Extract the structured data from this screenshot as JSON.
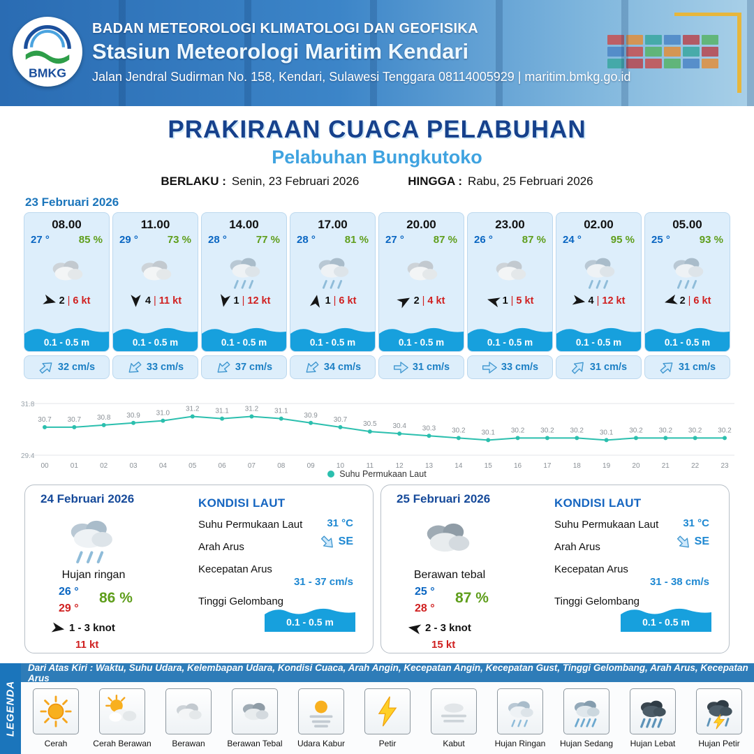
{
  "labels": {
    "sep": "|"
  },
  "header": {
    "logo_text": "BMKG",
    "agency": "BADAN METEOROLOGI KLIMATOLOGI DAN GEOFISIKA",
    "station": "Stasiun Meteorologi Maritim Kendari",
    "address": "Jalan Jendral Sudirman No. 158, Kendari, Sulawesi Tenggara  08114005929 | maritim.bmkg.go.id"
  },
  "title": {
    "main": "PRAKIRAAN CUACA PELABUHAN",
    "sub": "Pelabuhan Bungkutoko",
    "valid_label": "BERLAKU :",
    "valid_value": "Senin, 23 Februari 2026",
    "until_label": "HINGGA :",
    "until_value": "Rabu, 25 Februari 2026"
  },
  "forecast_date": "23 Februari 2026",
  "cards": [
    {
      "time": "08.00",
      "temp": "27 °",
      "humidity": "85 %",
      "icon": "cloud-icon",
      "wind_dir_deg": 15,
      "wind": "2",
      "gust": "6 kt",
      "wave": "0.1 - 0.5 m",
      "current_dir_deg": -40,
      "current": "32 cm/s"
    },
    {
      "time": "11.00",
      "temp": "29 °",
      "humidity": "73 %",
      "icon": "cloud-icon",
      "wind_dir_deg": 90,
      "wind": "4",
      "gust": "11 kt",
      "wave": "0.1 - 0.5 m",
      "current_dir_deg": 140,
      "current": "33 cm/s"
    },
    {
      "time": "14.00",
      "temp": "28 °",
      "humidity": "77 %",
      "icon": "light-rain-icon",
      "wind_dir_deg": 100,
      "wind": "1",
      "gust": "12 kt",
      "wave": "0.1 - 0.5 m",
      "current_dir_deg": 140,
      "current": "37 cm/s"
    },
    {
      "time": "17.00",
      "temp": "28 °",
      "humidity": "81 %",
      "icon": "light-rain-icon",
      "wind_dir_deg": 280,
      "wind": "1",
      "gust": "6 kt",
      "wave": "0.1 - 0.5 m",
      "current_dir_deg": 140,
      "current": "34 cm/s"
    },
    {
      "time": "20.00",
      "temp": "27 °",
      "humidity": "87 %",
      "icon": "cloud-icon",
      "wind_dir_deg": -30,
      "wind": "2",
      "gust": "4 kt",
      "wave": "0.1 - 0.5 m",
      "current_dir_deg": 0,
      "current": "31 cm/s"
    },
    {
      "time": "23.00",
      "temp": "26 °",
      "humidity": "87 %",
      "icon": "cloud-icon",
      "wind_dir_deg": 195,
      "wind": "1",
      "gust": "5 kt",
      "wave": "0.1 - 0.5 m",
      "current_dir_deg": 0,
      "current": "33 cm/s"
    },
    {
      "time": "02.00",
      "temp": "24 °",
      "humidity": "95 %",
      "icon": "light-rain-icon",
      "wind_dir_deg": 10,
      "wind": "4",
      "gust": "12 kt",
      "wave": "0.1 - 0.5 m",
      "current_dir_deg": -45,
      "current": "31 cm/s"
    },
    {
      "time": "05.00",
      "temp": "25 °",
      "humidity": "93 %",
      "icon": "light-rain-icon",
      "wind_dir_deg": 165,
      "wind": "2",
      "gust": "6 kt",
      "wave": "0.1 - 0.5 m",
      "current_dir_deg": -40,
      "current": "31 cm/s"
    }
  ],
  "chart_data": {
    "type": "line",
    "series_name": "Suhu Permukaan Laut",
    "x": [
      "00",
      "01",
      "02",
      "03",
      "04",
      "05",
      "06",
      "07",
      "08",
      "09",
      "10",
      "11",
      "12",
      "13",
      "14",
      "15",
      "16",
      "17",
      "18",
      "19",
      "20",
      "21",
      "22",
      "23"
    ],
    "values": [
      30.7,
      30.7,
      30.8,
      30.9,
      31.0,
      31.2,
      31.1,
      31.2,
      31.1,
      30.9,
      30.7,
      30.5,
      30.4,
      30.3,
      30.2,
      30.1,
      30.2,
      30.2,
      30.2,
      30.1,
      30.2,
      30.2,
      30.2,
      30.2
    ],
    "ylim": [
      29.4,
      31.8
    ],
    "grid": true,
    "legend_position": "bottom",
    "line_color": "#2bbfae"
  },
  "day_cards": [
    {
      "date": "24 Februari 2026",
      "icon": "light-rain-icon",
      "condition": "Hujan ringan",
      "temp_min": "26 °",
      "temp_max": "29 °",
      "humidity": "86 %",
      "wind_dir_deg": 10,
      "wind_range": "1 - 3 knot",
      "gust": "11 kt",
      "sea": {
        "title": "KONDISI LAUT",
        "sst_label": "Suhu Permukaan Laut",
        "sst": "31 °C",
        "current_dir_label": "Arah Arus",
        "current_dir": "SE",
        "current_dir_deg": 45,
        "current_speed_label": "Kecepatan Arus",
        "current_speed": "31 - 37 cm/s",
        "wave_label": "Tinggi Gelombang",
        "wave": "0.1 - 0.5 m"
      }
    },
    {
      "date": "25 Februari 2026",
      "icon": "thick-cloud-icon",
      "condition": "Berawan tebal",
      "temp_min": "25 °",
      "temp_max": "28 °",
      "humidity": "87 %",
      "wind_dir_deg": 190,
      "wind_range": "2 - 3 knot",
      "gust": "15 kt",
      "sea": {
        "title": "KONDISI LAUT",
        "sst_label": "Suhu Permukaan Laut",
        "sst": "31 °C",
        "current_dir_label": "Arah Arus",
        "current_dir": "SE",
        "current_dir_deg": 45,
        "current_speed_label": "Kecepatan Arus",
        "current_speed": "31 - 38 cm/s",
        "wave_label": "Tinggi Gelombang",
        "wave": "0.1 - 0.5 m"
      }
    }
  ],
  "legend": {
    "vertical_label": "LEGENDA",
    "note": "Dari Atas Kiri : Waktu, Suhu Udara, Kelembapan Udara, Kondisi Cuaca, Arah Angin, Kecepatan Angin, Kecepatan Gust, Tinggi Gelombang, Arah Arus, Kecepatan Arus",
    "items": [
      {
        "label": "Cerah",
        "icon": "sun-icon"
      },
      {
        "label": "Cerah Berawan",
        "icon": "sun-cloud-icon"
      },
      {
        "label": "Berawan",
        "icon": "cloud-icon"
      },
      {
        "label": "Berawan Tebal",
        "icon": "thick-cloud-icon"
      },
      {
        "label": "Udara Kabur",
        "icon": "haze-icon"
      },
      {
        "label": "Petir",
        "icon": "lightning-icon"
      },
      {
        "label": "Kabut",
        "icon": "fog-icon"
      },
      {
        "label": "Hujan Ringan",
        "icon": "light-rain-icon"
      },
      {
        "label": "Hujan Sedang",
        "icon": "moderate-rain-icon"
      },
      {
        "label": "Hujan Lebat",
        "icon": "heavy-rain-icon"
      },
      {
        "label": "Hujan Petir",
        "icon": "thunderstorm-icon"
      }
    ]
  },
  "colors": {
    "header_blue": "#2a6cb3",
    "title_dark_blue": "#16418c",
    "title_light_blue": "#3fa3e0",
    "temp_blue": "#0a66c2",
    "humidity_green": "#5f9e1c",
    "gust_red": "#d02020",
    "wave_blue": "#17a0dd",
    "chart_teal": "#2bbfae",
    "legend_bar_blue": "#1b75bb"
  }
}
